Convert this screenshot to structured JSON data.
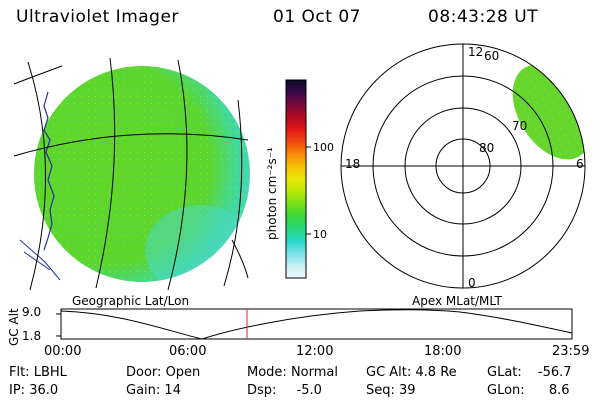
{
  "header": {
    "title": "Ultraviolet Imager",
    "date": "01 Oct 07",
    "time": "08:43:28 UT"
  },
  "colorbar": {
    "unit_label": "photon cm⁻²s⁻¹",
    "ticks": [
      "100",
      "10"
    ],
    "colors": [
      "#0a0a2a",
      "#3a0a4a",
      "#7a0a3a",
      "#b00a20",
      "#e01818",
      "#f04a10",
      "#f88a08",
      "#f8c008",
      "#e8e808",
      "#b8e808",
      "#78e018",
      "#38d838",
      "#28d878",
      "#28d8c8",
      "#78e0e8",
      "#c8eef4",
      "#f0f8fa"
    ]
  },
  "geo_panel": {
    "label": "Geographic Lat/Lon",
    "colors": {
      "main": "#62d628",
      "accent": "#40d8c8",
      "outline": "#1f2fa0"
    }
  },
  "polar_panel": {
    "label": "Apex MLat/MLT",
    "mlt_labels": {
      "top": "12",
      "left": "18",
      "bottom": "0",
      "right": "6"
    },
    "lat_labels": [
      "60",
      "70",
      "80"
    ]
  },
  "timeline": {
    "ylabel": "GC Alt",
    "yticks": [
      "9.0",
      "1.8"
    ],
    "xticks": [
      "00:00",
      "06:00",
      "12:00",
      "18:00",
      "23:59"
    ],
    "current_fraction": 0.364,
    "marker_color": "#e02020"
  },
  "status": {
    "row1": [
      {
        "label": "Flt:",
        "value": "LBHL"
      },
      {
        "label": "Door:",
        "value": "Open"
      },
      {
        "label": "Mode:",
        "value": "Normal"
      },
      {
        "label": "GC Alt:",
        "value": "4.8 Re"
      },
      {
        "label": "GLat:",
        "value": "-56.7"
      }
    ],
    "row2": [
      {
        "label": "IP:",
        "value": "36.0"
      },
      {
        "label": "Gain:",
        "value": "14"
      },
      {
        "label": "Dsp:",
        "value": "-5.0"
      },
      {
        "label": "Seq:",
        "value": "39"
      },
      {
        "label": "GLon:",
        "value": "8.6"
      }
    ]
  }
}
